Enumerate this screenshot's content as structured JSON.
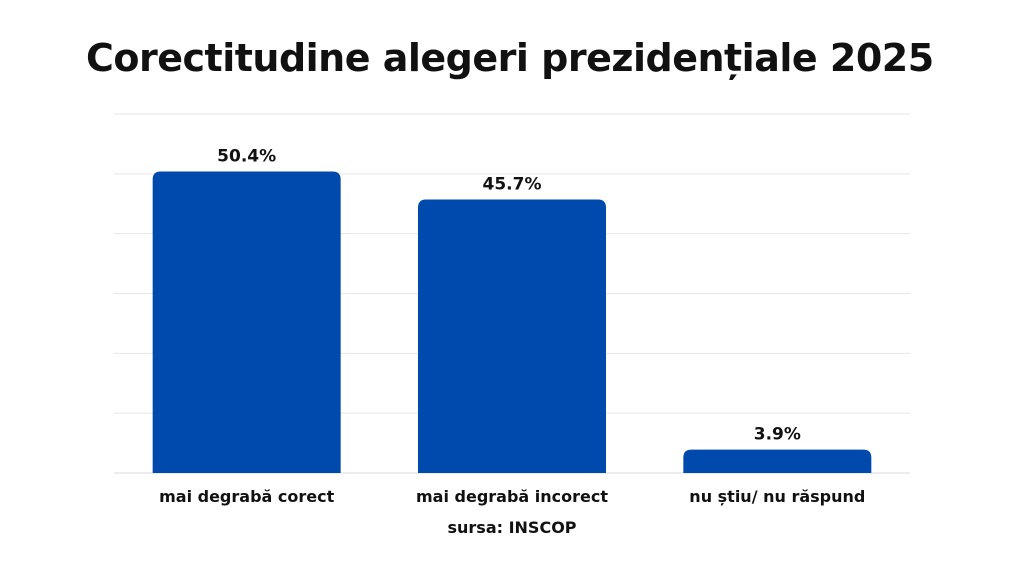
{
  "title": "Corectitudine alegeri prezidențiale 2025",
  "source": "sursa: INSCOP",
  "colors": {
    "bar": "#004aad",
    "grid": "#e6e6e6",
    "axis": "#d9d9d9",
    "text": "#111111"
  },
  "chart_data": {
    "type": "bar",
    "categories": [
      "mai degrabă corect",
      "mai degrabă incorect",
      "nu știu/ nu răspund"
    ],
    "values": [
      50.4,
      45.7,
      3.9
    ],
    "value_labels": [
      "50.4%",
      "45.7%",
      "3.9%"
    ],
    "title": "Corectitudine alegeri prezidențiale 2025",
    "xlabel": "",
    "ylabel": "",
    "ylim": [
      0,
      60
    ],
    "grid": true,
    "legend": "none"
  }
}
